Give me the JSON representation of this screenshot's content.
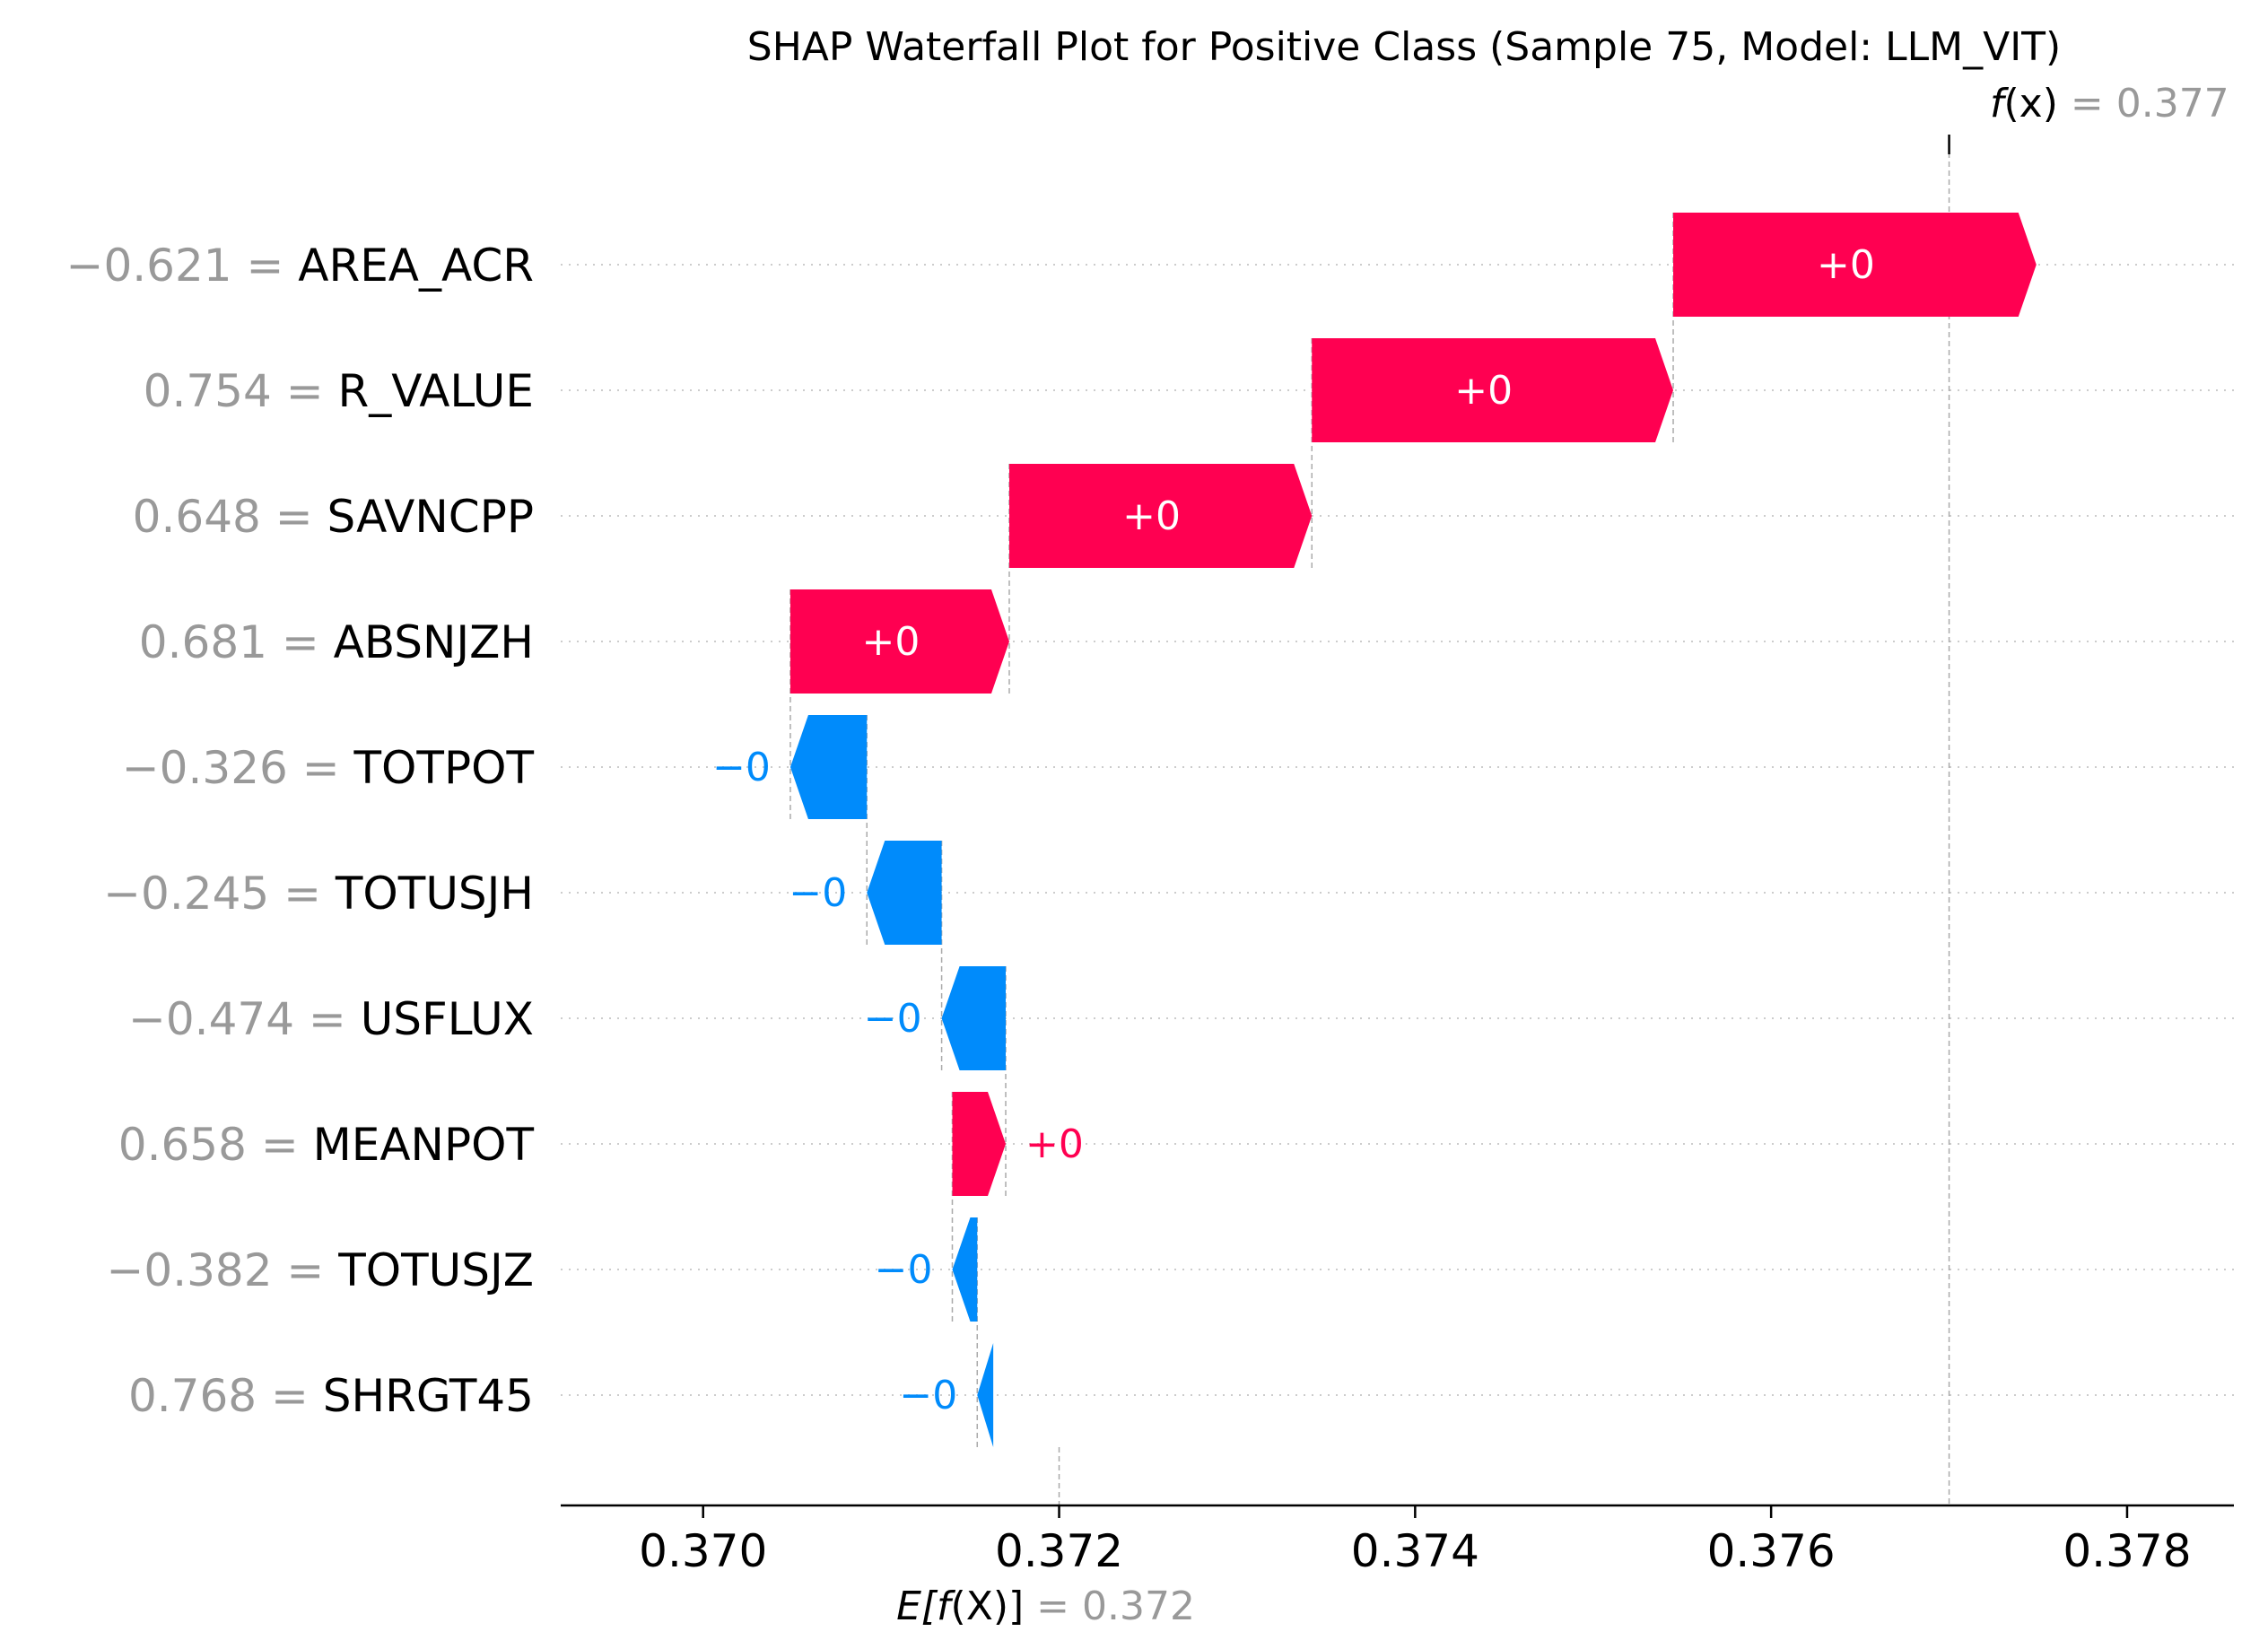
{
  "chart_data": {
    "type": "waterfall",
    "title": "SHAP Waterfall Plot for Positive Class (Sample 75, Model: LLM_VIT)",
    "base_value": 0.372,
    "base_label_prefix": "E[",
    "base_label_func": "f",
    "base_label_arg": "(X)",
    "base_label_suffix": "]",
    "base_value_text": "= 0.372",
    "output_value": 0.377,
    "output_label_func": "f",
    "output_label_arg": "(x)",
    "output_value_text": "= 0.377",
    "xlim": [
      0.3692,
      0.3786
    ],
    "xticks": [
      {
        "value": 0.37,
        "label": "0.370"
      },
      {
        "value": 0.372,
        "label": "0.372"
      },
      {
        "value": 0.374,
        "label": "0.374"
      },
      {
        "value": 0.376,
        "label": "0.376"
      },
      {
        "value": 0.378,
        "label": "0.378"
      }
    ],
    "colors": {
      "positive": "#ff0051",
      "negative": "#008bfb",
      "feature_value": "#999999",
      "grid": "#cccccc"
    },
    "features": [
      {
        "name": "AREA_ACR",
        "value_text": "−0.621 =",
        "start": 0.37545,
        "end": 0.37749,
        "label": "+0"
      },
      {
        "name": "R_VALUE",
        "value_text": "0.754 =",
        "start": 0.37342,
        "end": 0.37545,
        "label": "+0"
      },
      {
        "name": "SAVNCPP",
        "value_text": "0.648 =",
        "start": 0.37172,
        "end": 0.37342,
        "label": "+0"
      },
      {
        "name": "ABSNJZH",
        "value_text": "0.681 =",
        "start": 0.37049,
        "end": 0.37172,
        "label": "+0"
      },
      {
        "name": "TOTPOT",
        "value_text": "−0.326 =",
        "start": 0.37092,
        "end": 0.37049,
        "label": "−0"
      },
      {
        "name": "TOTUSJH",
        "value_text": "−0.245 =",
        "start": 0.37134,
        "end": 0.37092,
        "label": "−0"
      },
      {
        "name": "USFLUX",
        "value_text": "−0.474 =",
        "start": 0.3717,
        "end": 0.37134,
        "label": "−0"
      },
      {
        "name": "MEANPOT",
        "value_text": "0.658 =",
        "start": 0.3714,
        "end": 0.3717,
        "label": "+0"
      },
      {
        "name": "TOTUSJZ",
        "value_text": "−0.382 =",
        "start": 0.37154,
        "end": 0.3714,
        "label": "−0"
      },
      {
        "name": "SHRGT45",
        "value_text": "0.768 =",
        "start": 0.37163,
        "end": 0.37154,
        "label": "−0"
      }
    ]
  }
}
